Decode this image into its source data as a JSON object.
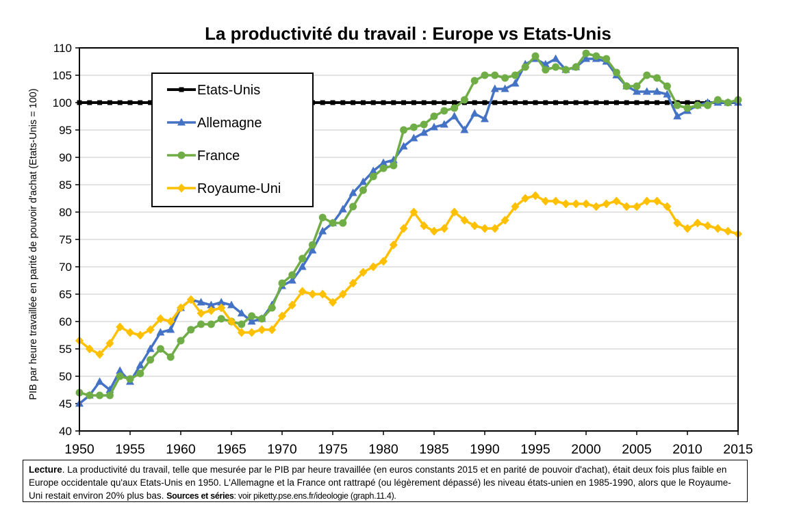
{
  "chart_data": {
    "type": "line",
    "title": "La productivité du travail : Europe vs Etats-Unis",
    "xlabel": "",
    "ylabel": "PIB par heure travaillée en parité de pouvoir d'achat (Etats-Unis = 100)",
    "xlim": [
      1950,
      2015
    ],
    "ylim": [
      40,
      110
    ],
    "x_ticks": [
      1950,
      1955,
      1960,
      1965,
      1970,
      1975,
      1980,
      1985,
      1990,
      1995,
      2000,
      2005,
      2010,
      2015
    ],
    "y_ticks": [
      40,
      45,
      50,
      55,
      60,
      65,
      70,
      75,
      80,
      85,
      90,
      95,
      100,
      105,
      110
    ],
    "grid": "horizontal",
    "legend_position": "top-left",
    "x": [
      1950,
      1951,
      1952,
      1953,
      1954,
      1955,
      1956,
      1957,
      1958,
      1959,
      1960,
      1961,
      1962,
      1963,
      1964,
      1965,
      1966,
      1967,
      1968,
      1969,
      1970,
      1971,
      1972,
      1973,
      1974,
      1975,
      1976,
      1977,
      1978,
      1979,
      1980,
      1981,
      1982,
      1983,
      1984,
      1985,
      1986,
      1987,
      1988,
      1989,
      1990,
      1991,
      1992,
      1993,
      1994,
      1995,
      1996,
      1997,
      1998,
      1999,
      2000,
      2001,
      2002,
      2003,
      2004,
      2005,
      2006,
      2007,
      2008,
      2009,
      2010,
      2011,
      2012,
      2013,
      2014,
      2015
    ],
    "series": [
      {
        "name": "Etats-Unis",
        "color": "#000000",
        "marker": "square",
        "values": [
          100,
          100,
          100,
          100,
          100,
          100,
          100,
          100,
          100,
          100,
          100,
          100,
          100,
          100,
          100,
          100,
          100,
          100,
          100,
          100,
          100,
          100,
          100,
          100,
          100,
          100,
          100,
          100,
          100,
          100,
          100,
          100,
          100,
          100,
          100,
          100,
          100,
          100,
          100,
          100,
          100,
          100,
          100,
          100,
          100,
          100,
          100,
          100,
          100,
          100,
          100,
          100,
          100,
          100,
          100,
          100,
          100,
          100,
          100,
          100,
          100,
          100,
          100,
          100,
          100,
          100
        ]
      },
      {
        "name": "Allemagne",
        "color": "#4472C4",
        "marker": "triangle",
        "values": [
          45,
          46.5,
          49,
          47.5,
          51,
          49,
          52,
          55,
          58,
          58.5,
          62.5,
          64,
          63.5,
          63,
          63.5,
          63,
          61.5,
          60,
          60.5,
          63,
          66.5,
          67.5,
          70,
          73,
          76.5,
          78,
          80.5,
          83.5,
          85.5,
          87.5,
          89,
          89.5,
          92,
          93.5,
          94.5,
          95.5,
          96,
          97.5,
          95,
          98,
          97,
          102.5,
          102.5,
          103.5,
          107,
          108,
          107,
          108,
          106,
          106.5,
          108,
          108,
          107.5,
          105,
          103,
          102,
          102,
          102,
          101.5,
          97.5,
          98.5,
          99.5,
          100,
          100,
          100,
          100
        ]
      },
      {
        "name": "France",
        "color": "#70AD47",
        "marker": "circle",
        "values": [
          47,
          46.5,
          46.5,
          46.5,
          50,
          49.5,
          50.5,
          53,
          55,
          53.5,
          56.5,
          58.5,
          59.5,
          59.5,
          60.5,
          60,
          59.5,
          61,
          60.5,
          62.5,
          67,
          68.5,
          71.5,
          74,
          79,
          78,
          78,
          81,
          84,
          86.5,
          88,
          88.5,
          95,
          95.5,
          96,
          97.5,
          98.5,
          99,
          100.5,
          104,
          105,
          105,
          104.5,
          105,
          106.5,
          108.5,
          106,
          106.5,
          106,
          106.5,
          109,
          108.5,
          108,
          105.5,
          103,
          103,
          105,
          104.5,
          103,
          99.5,
          99,
          99.5,
          99.5,
          100.5,
          100,
          100.5
        ]
      },
      {
        "name": "Royaume-Uni",
        "color": "#FFC000",
        "marker": "diamond",
        "values": [
          56.5,
          55,
          54,
          56,
          59,
          58,
          57.5,
          58.5,
          60.5,
          60,
          62.5,
          64,
          61.5,
          62,
          62.5,
          60,
          58,
          58,
          58.5,
          58.5,
          61,
          63,
          65.5,
          65,
          65,
          63.5,
          65,
          67,
          69,
          70,
          71,
          74,
          77,
          80,
          77.5,
          76.5,
          77,
          80,
          78.5,
          77.5,
          77,
          77,
          78.5,
          81,
          82.5,
          83,
          82,
          82,
          81.5,
          81.5,
          81.5,
          81,
          81.5,
          82,
          81,
          81,
          82,
          82,
          81,
          78,
          77,
          78,
          77.5,
          77,
          76.5,
          76
        ]
      }
    ]
  },
  "caption": {
    "lead": "Lecture",
    "body": ". La productivité du travail, telle que mesurée par le PIB par heure travaillée (en euros constants 2015 et en parité de pouvoir d'achat), était deux fois plus faible en Europe occidentale qu'aux Etats-Unis en 1950. L'Allemagne et la France ont rattrapé (ou légèrement dépassé) les niveau états-unien en 1985-1990, alors que le Royaume-Uni restait environ 20% plus bas. ",
    "sources_label": "Sources et séries",
    "sources_text": ": voir piketty.pse.ens.fr/ideologie (graph.11.4)."
  }
}
